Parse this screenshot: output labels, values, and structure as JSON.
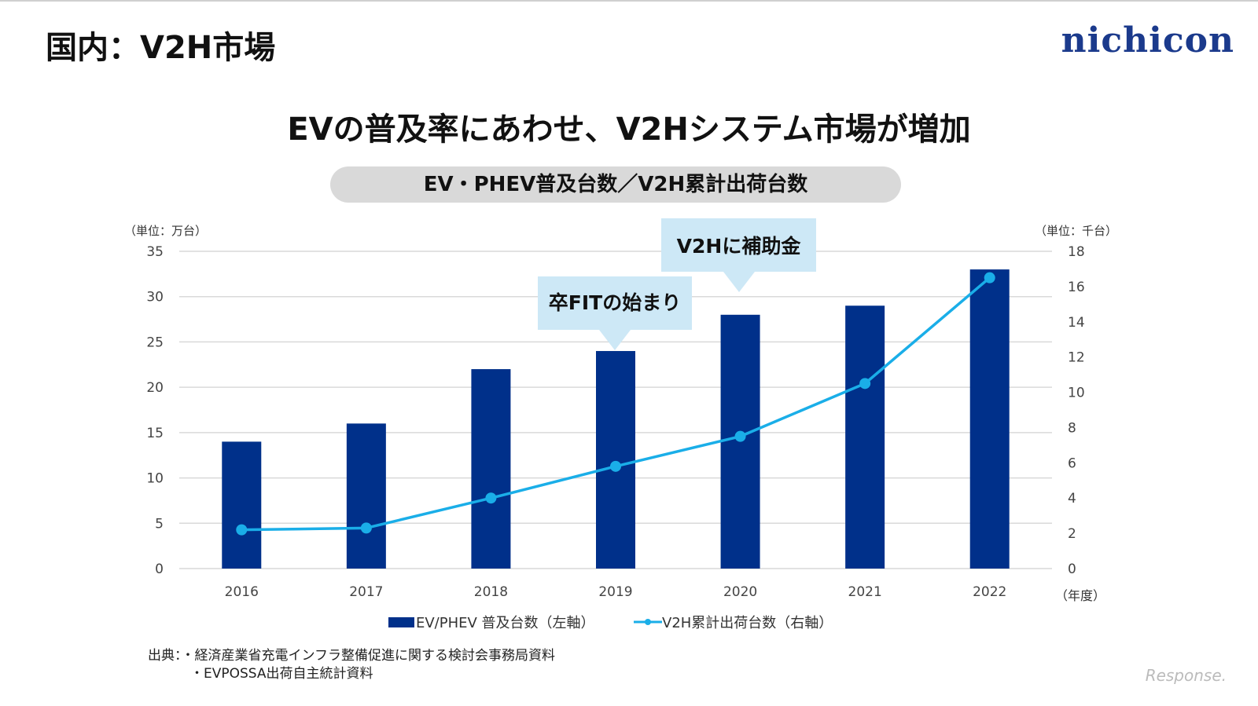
{
  "page_title": "国内：V2H市場",
  "logo": "nichicon",
  "headline": "EVの普及率にあわせ、V2Hシステム市場が増加",
  "watermark": "Response.",
  "chart_data": {
    "type": "bar+line",
    "title": "EV・PHEV普及台数／V2H累計出荷台数",
    "categories": [
      "2016",
      "2017",
      "2018",
      "2019",
      "2020",
      "2021",
      "2022"
    ],
    "xlabel": "（年度）",
    "left_axis": {
      "label": "（単位：万台）",
      "range": [
        0,
        35
      ],
      "ticks": [
        0,
        5,
        10,
        15,
        20,
        25,
        30,
        35
      ]
    },
    "right_axis": {
      "label": "（単位：千台）",
      "range": [
        0,
        18
      ],
      "ticks": [
        0,
        2,
        4,
        6,
        8,
        10,
        12,
        14,
        16,
        18
      ]
    },
    "series": [
      {
        "name": "EV/PHEV 普及台数（左軸）",
        "type": "bar",
        "axis": "left",
        "color": "#00308a",
        "values": [
          14,
          16,
          22,
          24,
          28,
          29,
          33
        ]
      },
      {
        "name": "V2H累計出荷台数（右軸）",
        "type": "line",
        "axis": "right",
        "color": "#1aaee8",
        "values": [
          2.2,
          2.3,
          4.0,
          5.8,
          7.5,
          10.5,
          16.5
        ]
      }
    ],
    "annotations": [
      {
        "text": "卒FITの始まり",
        "category": "2019"
      },
      {
        "text": "V2Hに補助金",
        "category": "2020"
      }
    ],
    "grid": true,
    "legend": "bottom"
  },
  "sources": [
    "出典：・経済産業省充電インフラ整備促進に関する検討会事務局資料",
    "・EVPOSSA出荷自主統計資料"
  ]
}
